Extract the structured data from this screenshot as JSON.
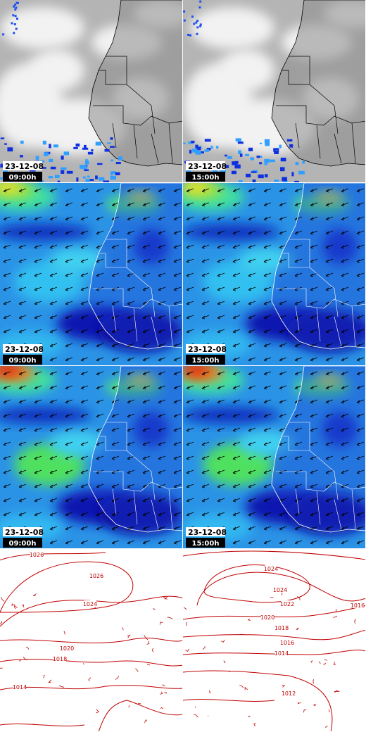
{
  "rows": [
    {
      "panels": [
        {
          "date": "23-12-08",
          "time": "09:00h"
        },
        {
          "date": "23-12-08",
          "time": "15:00h"
        }
      ]
    },
    {
      "panels": [
        {
          "date": "23-12-08",
          "time": "09:00h"
        },
        {
          "date": "23-12-08",
          "time": "15:00h"
        }
      ]
    },
    {
      "panels": [
        {
          "date": "23-12-08",
          "time": "09:00h"
        },
        {
          "date": "23-12-08",
          "time": "15:00h"
        }
      ]
    }
  ],
  "isobars": [
    {
      "labels": [
        1026,
        1026,
        1024,
        1020,
        1018,
        1014
      ]
    },
    {
      "labels": [
        1024,
        1024,
        1022,
        1020,
        1018,
        1016,
        1014,
        1016,
        1012
      ]
    }
  ]
}
